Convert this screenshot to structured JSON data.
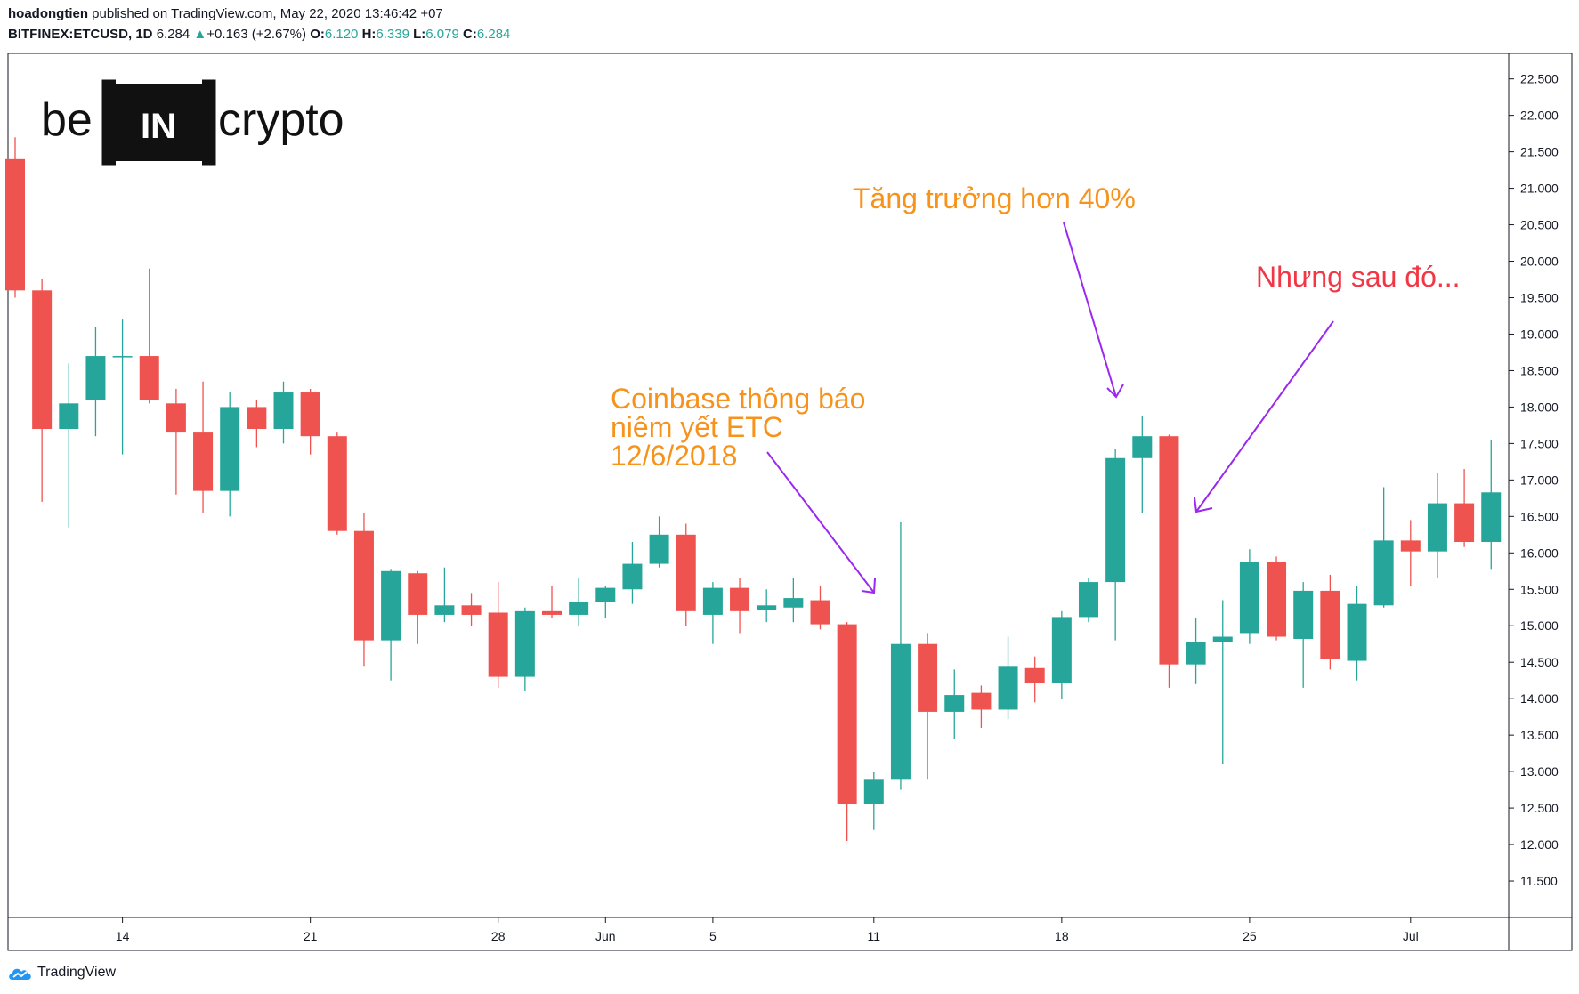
{
  "header": {
    "author": "hoadongtien",
    "published_text": "published on TradingView.com, May 22, 2020 13:46:42 +07",
    "symbol": "BITFINEX:ETCUSD, 1D",
    "last_price": "6.284",
    "change_arrow": "▲",
    "change": "+0.163 (+2.67%)",
    "open_label": "O:",
    "open": "6.120",
    "high_label": "H:",
    "high": "6.339",
    "low_label": "L:",
    "low": "6.079",
    "close_label": "C:",
    "close": "6.284"
  },
  "logo": {
    "left_text": "be",
    "center_text": "IN",
    "right_text": "crypto"
  },
  "footer": {
    "brand": "TradingView"
  },
  "colors": {
    "up": "#26a69a",
    "down": "#ef5350",
    "annotation_orange": "#f7931a",
    "annotation_red": "#f23645",
    "arrow": "#9c27f0"
  },
  "chart_data": {
    "type": "candlestick",
    "symbol": "BITFINEX:ETCUSD",
    "interval": "1D",
    "ylim": [
      11.0,
      22.85
    ],
    "y_ticks": [
      11.5,
      12.0,
      12.5,
      13.0,
      13.5,
      14.0,
      14.5,
      15.0,
      15.5,
      16.0,
      16.5,
      17.0,
      17.5,
      18.0,
      18.5,
      19.0,
      19.5,
      20.0,
      20.5,
      21.0,
      21.5,
      22.0,
      22.5
    ],
    "y_tick_labels": [
      "11.500",
      "12.000",
      "12.500",
      "13.000",
      "13.500",
      "14.000",
      "14.500",
      "15.000",
      "15.500",
      "16.000",
      "16.500",
      "17.000",
      "17.500",
      "18.000",
      "18.500",
      "19.000",
      "19.500",
      "20.000",
      "20.500",
      "21.000",
      "21.500",
      "22.000",
      "22.500"
    ],
    "x_ticks": [
      {
        "index": 4,
        "label": "14"
      },
      {
        "index": 11,
        "label": "21"
      },
      {
        "index": 18,
        "label": "28"
      },
      {
        "index": 22,
        "label": "Jun"
      },
      {
        "index": 26,
        "label": "5"
      },
      {
        "index": 32,
        "label": "11"
      },
      {
        "index": 39,
        "label": "18"
      },
      {
        "index": 46,
        "label": "25"
      },
      {
        "index": 52,
        "label": "Jul"
      }
    ],
    "candles": [
      {
        "o": 21.4,
        "h": 21.7,
        "l": 19.5,
        "c": 19.6
      },
      {
        "o": 19.6,
        "h": 19.75,
        "l": 16.7,
        "c": 17.7
      },
      {
        "o": 17.7,
        "h": 18.6,
        "l": 16.35,
        "c": 18.05
      },
      {
        "o": 18.1,
        "h": 19.1,
        "l": 17.6,
        "c": 18.7
      },
      {
        "o": 18.7,
        "h": 19.2,
        "l": 17.35,
        "c": 18.7
      },
      {
        "o": 18.7,
        "h": 19.9,
        "l": 18.05,
        "c": 18.1
      },
      {
        "o": 18.05,
        "h": 18.25,
        "l": 16.8,
        "c": 17.65
      },
      {
        "o": 17.65,
        "h": 18.35,
        "l": 16.55,
        "c": 16.85
      },
      {
        "o": 16.85,
        "h": 18.2,
        "l": 16.5,
        "c": 18.0
      },
      {
        "o": 18.0,
        "h": 18.1,
        "l": 17.45,
        "c": 17.7
      },
      {
        "o": 17.7,
        "h": 18.35,
        "l": 17.5,
        "c": 18.2
      },
      {
        "o": 18.2,
        "h": 18.25,
        "l": 17.35,
        "c": 17.6
      },
      {
        "o": 17.6,
        "h": 17.65,
        "l": 16.25,
        "c": 16.3
      },
      {
        "o": 16.3,
        "h": 16.55,
        "l": 14.45,
        "c": 14.8
      },
      {
        "o": 14.8,
        "h": 15.78,
        "l": 14.25,
        "c": 15.75
      },
      {
        "o": 15.72,
        "h": 15.75,
        "l": 14.75,
        "c": 15.15
      },
      {
        "o": 15.15,
        "h": 15.8,
        "l": 15.05,
        "c": 15.28
      },
      {
        "o": 15.28,
        "h": 15.45,
        "l": 15.0,
        "c": 15.15
      },
      {
        "o": 15.18,
        "h": 15.6,
        "l": 14.15,
        "c": 14.3
      },
      {
        "o": 14.3,
        "h": 15.25,
        "l": 14.1,
        "c": 15.2
      },
      {
        "o": 15.2,
        "h": 15.55,
        "l": 15.1,
        "c": 15.15
      },
      {
        "o": 15.15,
        "h": 15.65,
        "l": 15.0,
        "c": 15.33
      },
      {
        "o": 15.33,
        "h": 15.55,
        "l": 15.1,
        "c": 15.52
      },
      {
        "o": 15.5,
        "h": 16.15,
        "l": 15.3,
        "c": 15.85
      },
      {
        "o": 15.85,
        "h": 16.5,
        "l": 15.8,
        "c": 16.25
      },
      {
        "o": 16.25,
        "h": 16.4,
        "l": 15.0,
        "c": 15.2
      },
      {
        "o": 15.15,
        "h": 15.6,
        "l": 14.75,
        "c": 15.52
      },
      {
        "o": 15.52,
        "h": 15.65,
        "l": 14.9,
        "c": 15.2
      },
      {
        "o": 15.22,
        "h": 15.5,
        "l": 15.05,
        "c": 15.28
      },
      {
        "o": 15.25,
        "h": 15.65,
        "l": 15.05,
        "c": 15.38
      },
      {
        "o": 15.35,
        "h": 15.55,
        "l": 14.95,
        "c": 15.02
      },
      {
        "o": 15.02,
        "h": 15.05,
        "l": 12.05,
        "c": 12.55
      },
      {
        "o": 12.55,
        "h": 13.0,
        "l": 12.2,
        "c": 12.9
      },
      {
        "o": 12.9,
        "h": 16.42,
        "l": 12.75,
        "c": 14.75
      },
      {
        "o": 14.75,
        "h": 14.9,
        "l": 12.9,
        "c": 13.82
      },
      {
        "o": 13.82,
        "h": 14.4,
        "l": 13.45,
        "c": 14.05
      },
      {
        "o": 14.08,
        "h": 14.18,
        "l": 13.6,
        "c": 13.85
      },
      {
        "o": 13.85,
        "h": 14.85,
        "l": 13.72,
        "c": 14.45
      },
      {
        "o": 14.42,
        "h": 14.58,
        "l": 13.95,
        "c": 14.22
      },
      {
        "o": 14.22,
        "h": 15.2,
        "l": 14.0,
        "c": 15.12
      },
      {
        "o": 15.12,
        "h": 15.65,
        "l": 15.05,
        "c": 15.6
      },
      {
        "o": 15.6,
        "h": 17.42,
        "l": 14.8,
        "c": 17.3
      },
      {
        "o": 17.3,
        "h": 17.88,
        "l": 16.55,
        "c": 17.6
      },
      {
        "o": 17.6,
        "h": 17.62,
        "l": 14.15,
        "c": 14.47
      },
      {
        "o": 14.47,
        "h": 15.1,
        "l": 14.2,
        "c": 14.78
      },
      {
        "o": 14.78,
        "h": 15.35,
        "l": 13.1,
        "c": 14.85
      },
      {
        "o": 14.9,
        "h": 16.05,
        "l": 14.75,
        "c": 15.88
      },
      {
        "o": 15.88,
        "h": 15.95,
        "l": 14.8,
        "c": 14.85
      },
      {
        "o": 14.82,
        "h": 15.6,
        "l": 14.15,
        "c": 15.48
      },
      {
        "o": 15.48,
        "h": 15.7,
        "l": 14.4,
        "c": 14.55
      },
      {
        "o": 14.52,
        "h": 15.55,
        "l": 14.25,
        "c": 15.3
      },
      {
        "o": 15.28,
        "h": 16.9,
        "l": 15.25,
        "c": 16.17
      },
      {
        "o": 16.17,
        "h": 16.45,
        "l": 15.55,
        "c": 16.02
      },
      {
        "o": 16.02,
        "h": 17.1,
        "l": 15.65,
        "c": 16.68
      },
      {
        "o": 16.68,
        "h": 17.15,
        "l": 16.08,
        "c": 16.15
      },
      {
        "o": 16.15,
        "h": 17.55,
        "l": 15.78,
        "c": 16.83
      }
    ],
    "annotations": [
      {
        "lines": [
          "Coinbase thông báo",
          "niêm yết ETC",
          "12/6/2018"
        ],
        "color": "#f7931a"
      },
      {
        "lines": [
          "Tăng trưởng hơn 40%"
        ],
        "color": "#f7931a"
      },
      {
        "lines": [
          "Nhưng sau đó..."
        ],
        "color": "#f23645"
      }
    ]
  }
}
